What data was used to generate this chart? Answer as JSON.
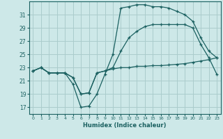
{
  "background_color": "#cde8e8",
  "grid_color": "#aacccc",
  "line_color": "#1a6060",
  "xlabel": "Humidex (Indice chaleur)",
  "ylim": [
    16,
    33
  ],
  "xlim": [
    -0.5,
    23.5
  ],
  "yticks": [
    17,
    19,
    21,
    23,
    25,
    27,
    29,
    31
  ],
  "xticks": [
    0,
    1,
    2,
    3,
    4,
    5,
    6,
    7,
    8,
    9,
    10,
    11,
    12,
    13,
    14,
    15,
    16,
    17,
    18,
    19,
    20,
    21,
    22,
    23
  ],
  "s1_x": [
    0,
    1,
    2,
    3,
    4,
    5,
    6,
    7,
    8,
    9,
    10,
    11,
    12,
    13,
    14,
    15,
    16,
    17,
    18,
    19,
    20,
    21,
    22,
    23
  ],
  "s1_y": [
    22.5,
    23.0,
    22.2,
    22.2,
    22.2,
    21.5,
    19.0,
    19.2,
    22.2,
    22.5,
    22.8,
    23.0,
    23.0,
    23.2,
    23.2,
    23.3,
    23.3,
    23.4,
    23.5,
    23.6,
    23.8,
    24.0,
    24.2,
    24.5
  ],
  "s2_x": [
    0,
    1,
    2,
    3,
    4,
    5,
    6,
    7,
    8,
    9,
    10,
    11,
    12,
    13,
    14,
    15,
    16,
    17,
    18,
    19,
    20,
    21,
    22,
    23
  ],
  "s2_y": [
    22.5,
    23.0,
    22.2,
    22.2,
    22.2,
    20.5,
    17.0,
    17.2,
    19.0,
    22.0,
    25.0,
    32.0,
    32.2,
    32.5,
    32.5,
    32.2,
    32.2,
    32.0,
    31.5,
    31.0,
    30.0,
    27.5,
    25.5,
    24.5
  ],
  "s3_x": [
    0,
    1,
    2,
    3,
    4,
    5,
    6,
    7,
    8,
    9,
    10,
    11,
    12,
    13,
    14,
    15,
    16,
    17,
    18,
    19,
    20,
    21,
    22,
    23
  ],
  "s3_y": [
    22.5,
    23.0,
    22.2,
    22.2,
    22.2,
    21.5,
    19.0,
    19.2,
    22.2,
    22.5,
    23.0,
    25.5,
    27.5,
    28.5,
    29.2,
    29.5,
    29.5,
    29.5,
    29.5,
    29.5,
    29.0,
    26.5,
    24.5,
    22.0
  ]
}
